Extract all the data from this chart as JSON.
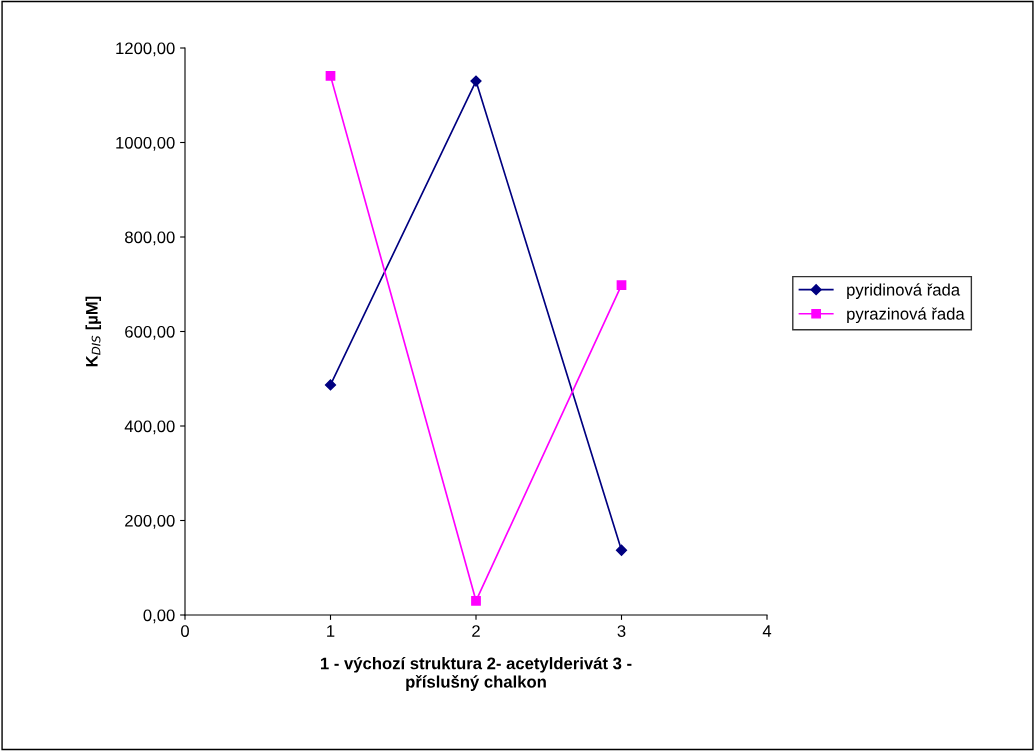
{
  "chart_data": {
    "type": "line",
    "xlabel": "1 - výchozí struktura 2- acetylderivát 3 -\npříslušný chalkon",
    "ylabel": "K$_{DIS}$ [µM]",
    "x": [
      1,
      2,
      3
    ],
    "series": [
      {
        "name": "pyridinová řada",
        "color": "#000080",
        "marker": "diamond",
        "values": [
          487,
          1130,
          137
        ]
      },
      {
        "name": "pyrazinová řada",
        "color": "#ff00ff",
        "marker": "square",
        "values": [
          1141,
          30,
          698
        ]
      }
    ],
    "xlim": [
      0,
      4
    ],
    "xticks": [
      0,
      1,
      2,
      3,
      4
    ],
    "ylim": [
      0,
      1200
    ],
    "yticks": [
      {
        "value": 0,
        "label": "0,00"
      },
      {
        "value": 200,
        "label": "200,00"
      },
      {
        "value": 400,
        "label": "400,00"
      },
      {
        "value": 600,
        "label": "600,00"
      },
      {
        "value": 800,
        "label": "800,00"
      },
      {
        "value": 1000,
        "label": "1000,00"
      },
      {
        "value": 1200,
        "label": "1200,00"
      }
    ],
    "grid": false,
    "legend": "right",
    "line_style": "solid"
  }
}
